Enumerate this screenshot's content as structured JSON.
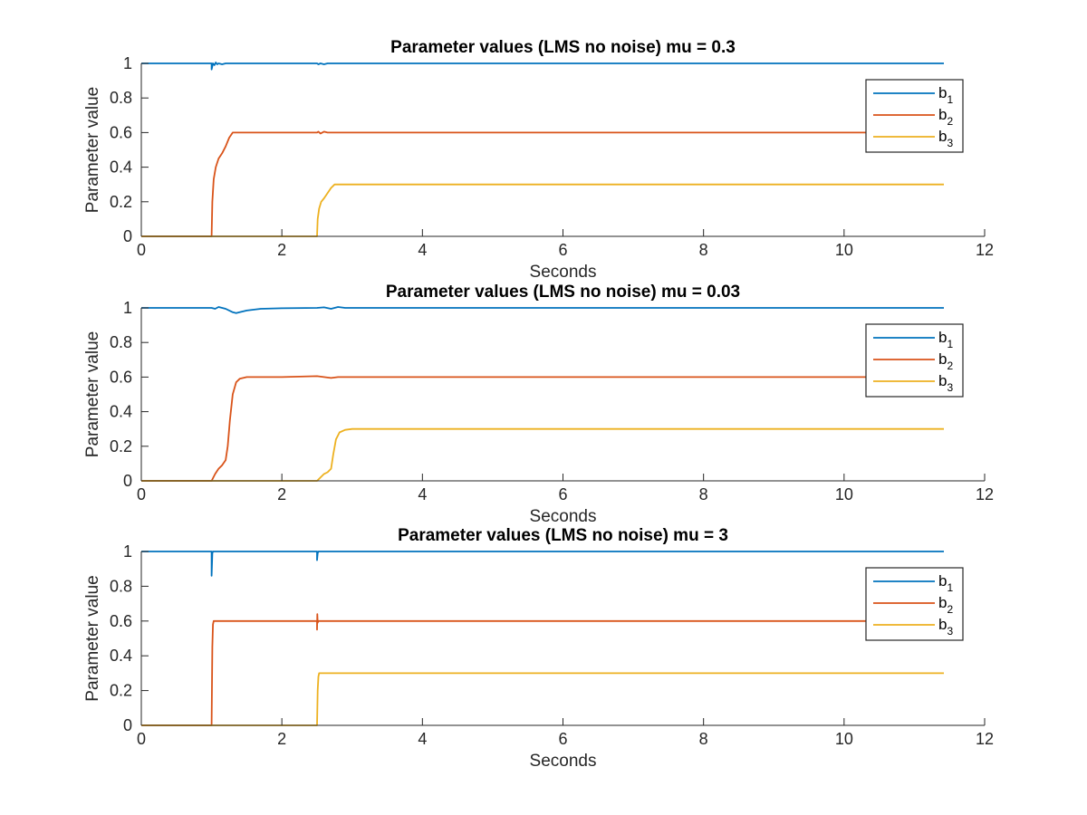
{
  "chart_data": [
    {
      "type": "line",
      "title": "Parameter values (LMS no noise) mu = 0.3",
      "xlabel": "Seconds",
      "ylabel": "Parameter value",
      "xlim": [
        0,
        12
      ],
      "ylim": [
        0,
        1
      ],
      "xticks": [
        "0",
        "2",
        "4",
        "6",
        "8",
        "10",
        "12"
      ],
      "yticks": [
        "0",
        "0.2",
        "0.4",
        "0.6",
        "0.8",
        "1"
      ],
      "legend_position": "top-right",
      "series": [
        {
          "name": "b",
          "sub": "1",
          "color": "#0072BD",
          "x": [
            0,
            1.0,
            1.0,
            1.02,
            1.04,
            1.06,
            1.08,
            1.1,
            1.15,
            1.2,
            2.5,
            2.52,
            2.55,
            2.6,
            2.65,
            2.7,
            11.42
          ],
          "y": [
            1,
            1,
            0.965,
            1.0,
            0.99,
            1.005,
            0.995,
            1.0,
            0.995,
            1.0,
            1.0,
            0.995,
            1.0,
            0.995,
            1.0,
            1.0,
            1.0
          ]
        },
        {
          "name": "b",
          "sub": "2",
          "color": "#D95319",
          "x": [
            0,
            1.0,
            1.01,
            1.03,
            1.06,
            1.1,
            1.15,
            1.2,
            1.25,
            1.3,
            2.5,
            2.52,
            2.55,
            2.6,
            2.65,
            2.7,
            11.42
          ],
          "y": [
            0,
            0,
            0.2,
            0.33,
            0.4,
            0.45,
            0.48,
            0.52,
            0.57,
            0.6,
            0.6,
            0.605,
            0.595,
            0.605,
            0.6,
            0.6,
            0.6
          ]
        },
        {
          "name": "b",
          "sub": "3",
          "color": "#EDB120",
          "x": [
            0,
            2.5,
            2.51,
            2.53,
            2.56,
            2.6,
            2.65,
            2.7,
            2.75,
            11.42
          ],
          "y": [
            0,
            0,
            0.1,
            0.16,
            0.2,
            0.22,
            0.25,
            0.28,
            0.3,
            0.3
          ]
        }
      ]
    },
    {
      "type": "line",
      "title": "Parameter values (LMS no noise) mu = 0.03",
      "xlabel": "Seconds",
      "ylabel": "Parameter value",
      "xlim": [
        0,
        12
      ],
      "ylim": [
        0,
        1
      ],
      "xticks": [
        "0",
        "2",
        "4",
        "6",
        "8",
        "10",
        "12"
      ],
      "yticks": [
        "0",
        "0.2",
        "0.4",
        "0.6",
        "0.8",
        "1"
      ],
      "legend_position": "top-right",
      "series": [
        {
          "name": "b",
          "sub": "1",
          "color": "#0072BD",
          "x": [
            0,
            1.0,
            1.05,
            1.1,
            1.2,
            1.3,
            1.35,
            1.4,
            1.5,
            1.7,
            2.0,
            2.5,
            2.6,
            2.7,
            2.8,
            2.9,
            11.42
          ],
          "y": [
            1,
            1,
            0.995,
            1.005,
            0.995,
            0.975,
            0.97,
            0.975,
            0.985,
            0.995,
            0.998,
            1.0,
            1.003,
            0.995,
            1.005,
            1.0,
            1.0
          ]
        },
        {
          "name": "b",
          "sub": "2",
          "color": "#D95319",
          "x": [
            0,
            1.0,
            1.05,
            1.1,
            1.15,
            1.2,
            1.23,
            1.26,
            1.3,
            1.35,
            1.4,
            1.5,
            1.7,
            2.0,
            2.5,
            2.6,
            2.7,
            2.8,
            11.42
          ],
          "y": [
            0,
            0,
            0.04,
            0.07,
            0.09,
            0.12,
            0.2,
            0.35,
            0.5,
            0.57,
            0.59,
            0.6,
            0.6,
            0.6,
            0.605,
            0.6,
            0.595,
            0.6,
            0.6
          ]
        },
        {
          "name": "b",
          "sub": "3",
          "color": "#EDB120",
          "x": [
            0,
            2.5,
            2.55,
            2.6,
            2.65,
            2.7,
            2.73,
            2.77,
            2.82,
            2.9,
            3.0,
            11.42
          ],
          "y": [
            0,
            0,
            0.02,
            0.04,
            0.05,
            0.07,
            0.15,
            0.24,
            0.28,
            0.295,
            0.3,
            0.3
          ]
        }
      ]
    },
    {
      "type": "line",
      "title": "Parameter values (LMS no noise) mu = 3",
      "xlabel": "Seconds",
      "ylabel": "Parameter value",
      "xlim": [
        0,
        12
      ],
      "ylim": [
        0,
        1
      ],
      "xticks": [
        "0",
        "2",
        "4",
        "6",
        "8",
        "10",
        "12"
      ],
      "yticks": [
        "0",
        "0.2",
        "0.4",
        "0.6",
        "0.8",
        "1"
      ],
      "legend_position": "top-right",
      "series": [
        {
          "name": "b",
          "sub": "1",
          "color": "#0072BD",
          "x": [
            0,
            1.0,
            1.0,
            1.01,
            1.02,
            2.5,
            2.5,
            2.51,
            2.52,
            11.42
          ],
          "y": [
            1,
            1,
            0.86,
            0.99,
            1.0,
            1.0,
            0.95,
            0.99,
            1.0,
            1.0
          ]
        },
        {
          "name": "b",
          "sub": "2",
          "color": "#D95319",
          "x": [
            0,
            1.0,
            1.01,
            1.02,
            1.03,
            1.05,
            2.5,
            2.5,
            2.505,
            2.51,
            2.52,
            11.42
          ],
          "y": [
            0,
            0,
            0.45,
            0.58,
            0.6,
            0.6,
            0.6,
            0.55,
            0.64,
            0.59,
            0.6,
            0.6
          ]
        },
        {
          "name": "b",
          "sub": "3",
          "color": "#EDB120",
          "x": [
            0,
            2.5,
            2.51,
            2.52,
            2.53,
            11.42
          ],
          "y": [
            0,
            0,
            0.2,
            0.28,
            0.3,
            0.3
          ]
        }
      ]
    }
  ]
}
